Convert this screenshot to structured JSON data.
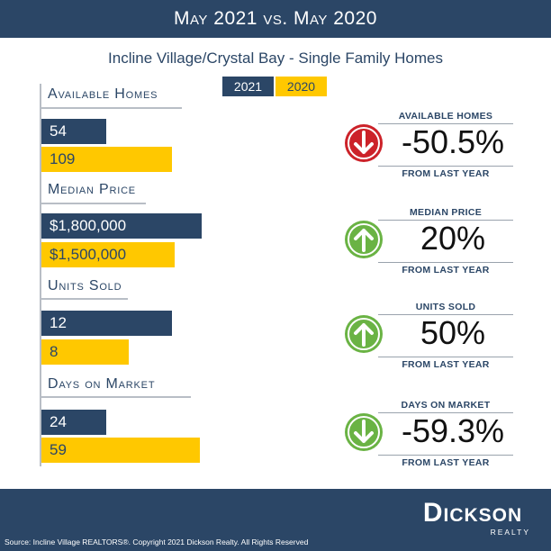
{
  "header": {
    "title": "May 2021 vs. May 2020"
  },
  "subtitle": "Incline Village/Crystal Bay - Single Family Homes",
  "legend": {
    "y2021": "2021",
    "y2020": "2020"
  },
  "colors": {
    "navy": "#2b4666",
    "yellow": "#ffc800",
    "red": "#cc2229",
    "green": "#6ab344"
  },
  "chart_data": {
    "type": "bar",
    "series": [
      {
        "name": "2021",
        "color": "#2b4666"
      },
      {
        "name": "2020",
        "color": "#ffc800"
      }
    ],
    "categories": [
      {
        "label": "Available Homes",
        "v2021": 54,
        "v2020": 109,
        "t2021": "54",
        "t2020": "109",
        "max": 150
      },
      {
        "label": "Median Price",
        "v2021": 1800000,
        "v2020": 1500000,
        "t2021": "$1,800,000",
        "t2020": "$1,500,000",
        "max": 2025000
      },
      {
        "label": "Units Sold",
        "v2021": 12,
        "v2020": 8,
        "t2021": "12",
        "t2020": "8",
        "max": 16.5
      },
      {
        "label": "Days on Market",
        "v2021": 24,
        "v2020": 59,
        "t2021": "24",
        "t2020": "59",
        "max": 67
      }
    ]
  },
  "stats": [
    {
      "title": "AVAILABLE HOMES",
      "value": "-50.5%",
      "foot": "FROM LAST YEAR",
      "icon": "arrow-down-icon",
      "color": "#cc2229"
    },
    {
      "title": "MEDIAN PRICE",
      "value": "20%",
      "foot": "FROM LAST YEAR",
      "icon": "arrow-up-icon",
      "color": "#6ab344"
    },
    {
      "title": "UNITS SOLD",
      "value": "50%",
      "foot": "FROM LAST YEAR",
      "icon": "arrow-up-icon",
      "color": "#6ab344"
    },
    {
      "title": "DAYS ON MARKET",
      "value": "-59.3%",
      "foot": "FROM LAST YEAR",
      "icon": "arrow-down-icon",
      "color": "#6ab344"
    }
  ],
  "footer": {
    "source": "Source: Incline Village REALTORS®. Copyright 2021 Dickson Realty. All Rights Reserved",
    "brand": "Dickson",
    "brand_sub": "REALTY"
  }
}
